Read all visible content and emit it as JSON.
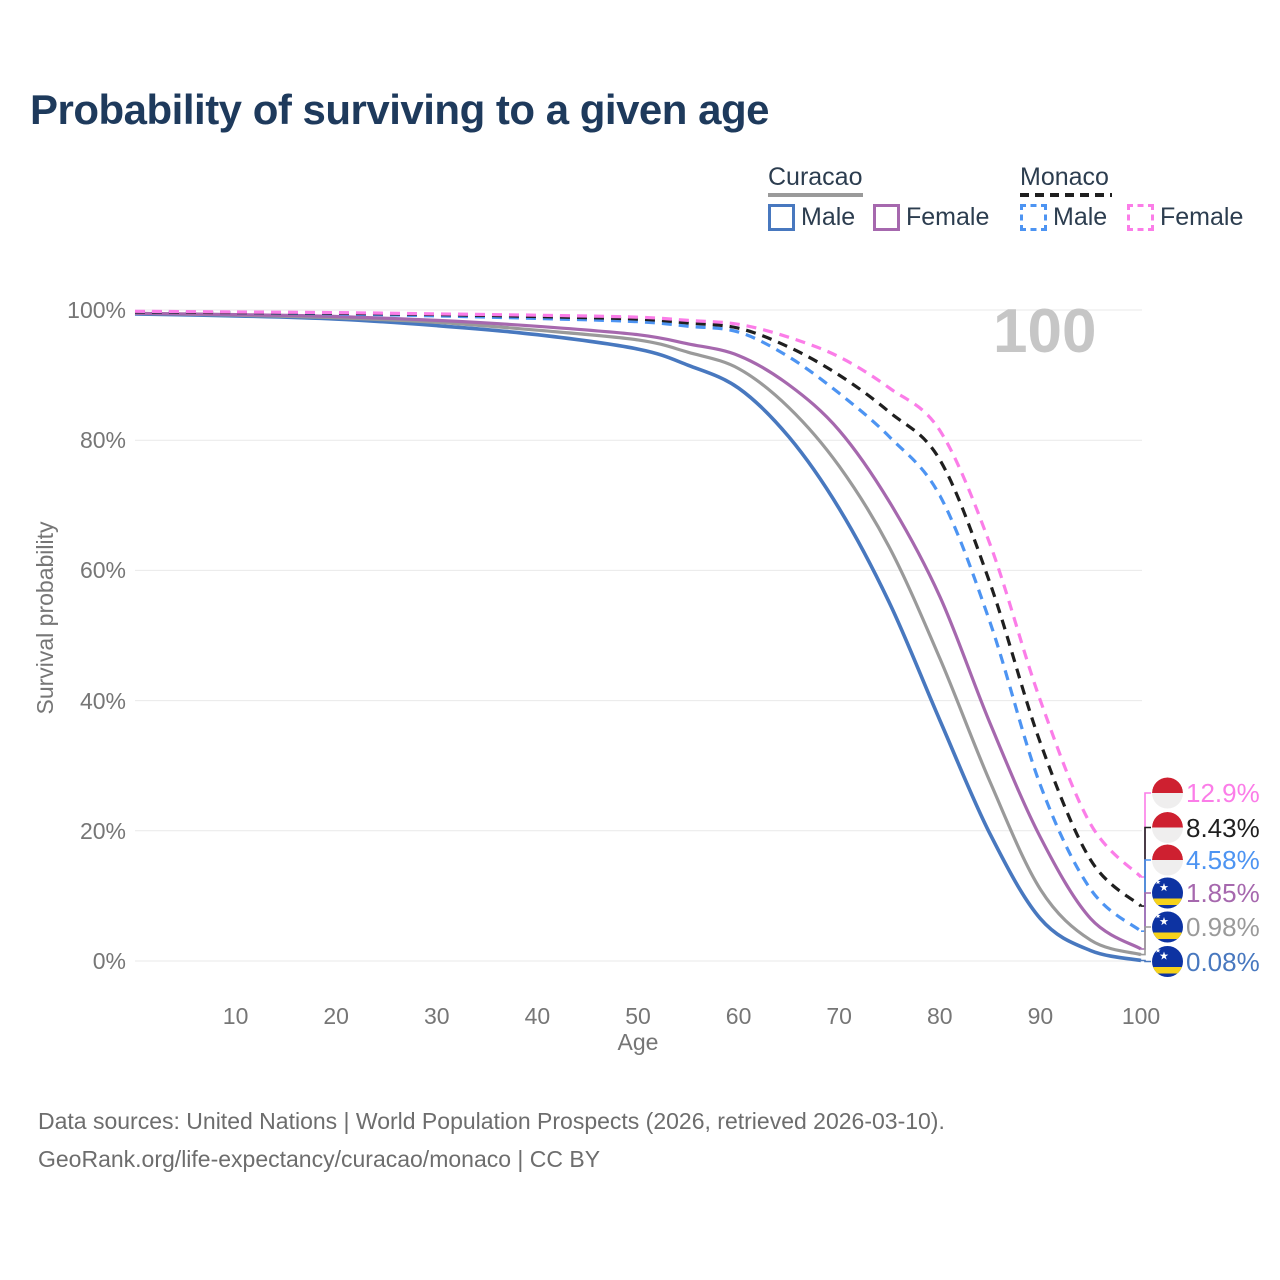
{
  "title": "Probability of surviving to a given age",
  "annotation": {
    "age_marker": "100"
  },
  "legend": {
    "groups": [
      {
        "name": "Curacao",
        "line_style": "solid",
        "underline_color": "#9a9a9a",
        "items": [
          {
            "label": "Male",
            "color": "#4878bf"
          },
          {
            "label": "Female",
            "color": "#a668ae"
          }
        ]
      },
      {
        "name": "Monaco",
        "line_style": "dashed",
        "underline_color": "#1f1f1f",
        "items": [
          {
            "label": "Male",
            "color": "#4d94f2"
          },
          {
            "label": "Female",
            "color": "#fb7de8"
          }
        ]
      }
    ]
  },
  "end_labels": [
    {
      "text": "12.9%",
      "value": 12.9,
      "color": "#fb7de8",
      "flag": "monaco"
    },
    {
      "text": "8.43%",
      "value": 8.43,
      "color": "#1f1f1f",
      "flag": "monaco"
    },
    {
      "text": "4.58%",
      "value": 4.58,
      "color": "#4d94f2",
      "flag": "monaco"
    },
    {
      "text": "1.85%",
      "value": 1.85,
      "color": "#a668ae",
      "flag": "curacao"
    },
    {
      "text": "0.98%",
      "value": 0.98,
      "color": "#9a9a9a",
      "flag": "curacao"
    },
    {
      "text": "0.08%",
      "value": 0.08,
      "color": "#4878bf",
      "flag": "curacao"
    }
  ],
  "footer": {
    "line1": "Data sources: United Nations | World Population Prospects (2026, retrieved 2026-03-10).",
    "line2": "GeoRank.org/life-expectancy/curacao/monaco | CC BY"
  },
  "chart_data": {
    "type": "line",
    "title": "Probability of surviving to a given age",
    "xlabel": "Age",
    "ylabel": "Survival probability",
    "xlim": [
      0,
      100
    ],
    "ylim": [
      0,
      100
    ],
    "grid": "horizontal",
    "legend_position": "top-right",
    "x": [
      0,
      10,
      20,
      30,
      40,
      50,
      55,
      60,
      65,
      70,
      75,
      80,
      85,
      90,
      95,
      100
    ],
    "xticks": {
      "values": [
        10,
        20,
        30,
        40,
        50,
        60,
        70,
        80,
        90,
        100
      ],
      "labels": [
        "10",
        "20",
        "30",
        "40",
        "50",
        "60",
        "70",
        "80",
        "90",
        "100"
      ]
    },
    "yticks": {
      "values": [
        0,
        20,
        40,
        60,
        80,
        100
      ],
      "labels": [
        "0%",
        "20%",
        "40%",
        "60%",
        "80%",
        "100%"
      ]
    },
    "series": [
      {
        "name": "Curacao Male",
        "country": "Curacao",
        "sex": "male",
        "style": "solid",
        "color": "#4878bf",
        "values": [
          99.4,
          99.1,
          98.6,
          97.6,
          96.2,
          94.0,
          91.5,
          88.0,
          80.5,
          69.5,
          55.0,
          37.0,
          19.5,
          6.5,
          1.6,
          0.08
        ]
      },
      {
        "name": "Curacao Total",
        "country": "Curacao",
        "sex": "both",
        "style": "solid",
        "color": "#9a9a9a",
        "values": [
          99.5,
          99.2,
          98.8,
          98.1,
          96.9,
          95.4,
          93.5,
          91.0,
          85.0,
          76.0,
          63.5,
          46.5,
          27.5,
          11.0,
          3.2,
          0.98
        ]
      },
      {
        "name": "Curacao Female",
        "country": "Curacao",
        "sex": "female",
        "style": "solid",
        "color": "#a668ae",
        "values": [
          99.5,
          99.3,
          99.0,
          98.4,
          97.5,
          96.2,
          94.8,
          93.0,
          88.5,
          81.5,
          70.5,
          56.0,
          36.5,
          19.0,
          6.5,
          1.85
        ]
      },
      {
        "name": "Monaco Male",
        "country": "Monaco",
        "sex": "male",
        "style": "dashed",
        "color": "#4d94f2",
        "values": [
          99.7,
          99.6,
          99.4,
          99.1,
          98.7,
          98.2,
          97.5,
          96.6,
          92.8,
          87.2,
          80.5,
          71.5,
          52.0,
          27.0,
          11.0,
          4.58
        ]
      },
      {
        "name": "Monaco Total",
        "country": "Monaco",
        "sex": "both",
        "style": "dashed",
        "color": "#1f1f1f",
        "values": [
          99.7,
          99.6,
          99.5,
          99.3,
          99.0,
          98.6,
          98.0,
          97.2,
          94.3,
          90.0,
          84.3,
          77.0,
          58.0,
          33.5,
          15.5,
          8.43
        ]
      },
      {
        "name": "Monaco Female",
        "country": "Monaco",
        "sex": "female",
        "style": "dashed",
        "color": "#fb7de8",
        "values": [
          99.8,
          99.7,
          99.6,
          99.4,
          99.2,
          98.9,
          98.4,
          97.8,
          95.8,
          92.8,
          88.0,
          81.5,
          64.0,
          40.0,
          21.0,
          12.9
        ]
      }
    ]
  }
}
